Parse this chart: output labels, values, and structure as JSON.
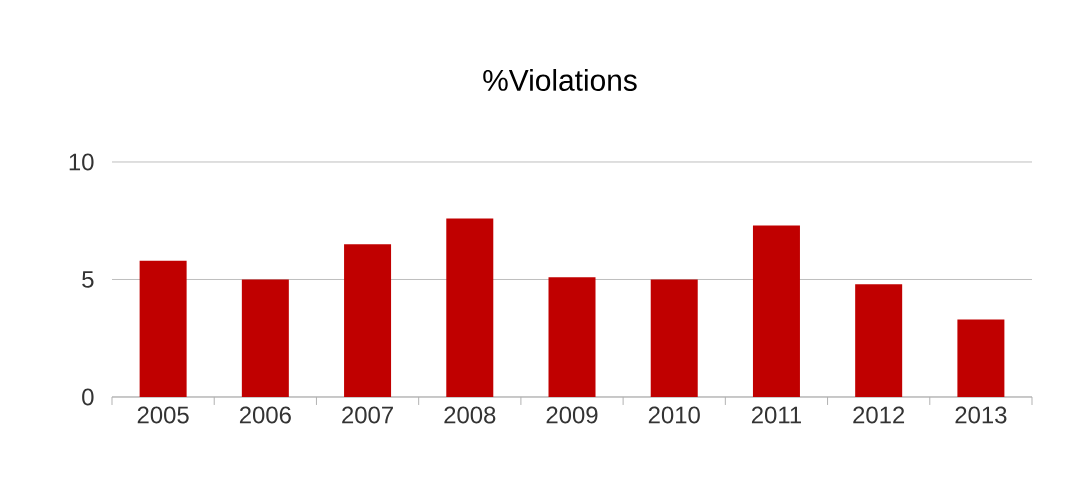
{
  "chart_data": {
    "type": "bar",
    "title": "%Violations",
    "categories": [
      "2005",
      "2006",
      "2007",
      "2008",
      "2009",
      "2010",
      "2011",
      "2012",
      "2013"
    ],
    "values": [
      5.8,
      5.0,
      6.5,
      7.6,
      5.1,
      5.0,
      7.3,
      4.8,
      3.3
    ],
    "color": "#c00000",
    "ylim": [
      0,
      10
    ],
    "yticks": [
      0,
      5,
      10
    ],
    "grid": "y"
  }
}
